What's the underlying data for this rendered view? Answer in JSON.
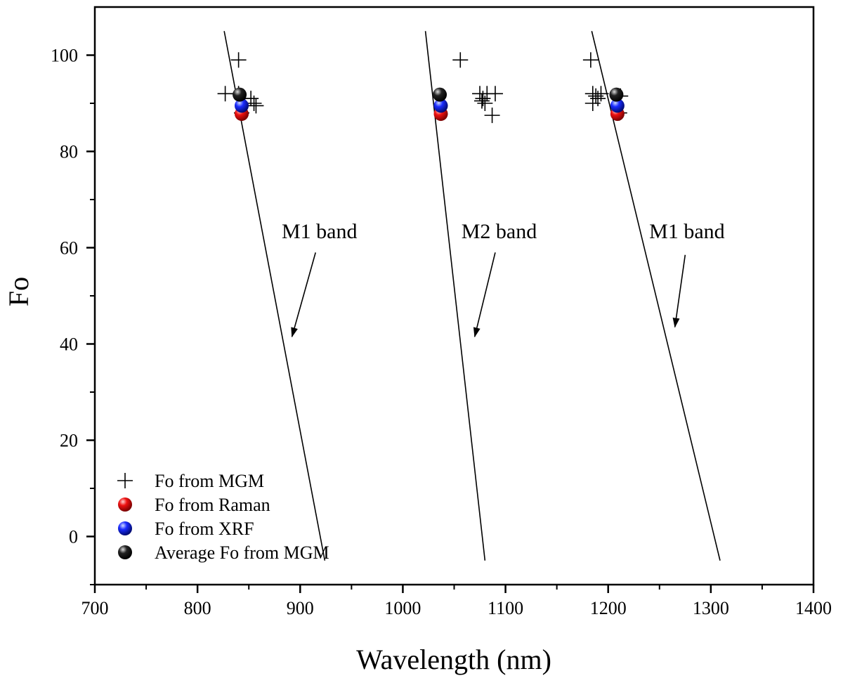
{
  "chart_data": {
    "type": "scatter",
    "title": "",
    "xlabel": "Wavelength (nm)",
    "ylabel": "Fo",
    "xlim": [
      700,
      1400
    ],
    "ylim": [
      -10,
      110
    ],
    "x_ticks": [
      700,
      800,
      900,
      1000,
      1100,
      1200,
      1300,
      1400
    ],
    "x_tick_labels": [
      "700",
      "800",
      "900",
      "1000",
      "1100",
      "1200",
      "1300",
      "1400"
    ],
    "y_ticks": [
      0,
      20,
      40,
      60,
      80,
      100
    ],
    "y_tick_labels": [
      "0",
      "20",
      "40",
      "60",
      "80",
      "100"
    ],
    "grid": false,
    "legend_position": "bottom-left",
    "series": [
      {
        "name": "Fo from MGM",
        "marker": "plus",
        "color": "#000000",
        "points": [
          [
            840,
            99
          ],
          [
            827,
            92
          ],
          [
            840,
            92
          ],
          [
            846,
            91
          ],
          [
            852,
            91
          ],
          [
            855,
            90
          ],
          [
            857,
            89.5
          ],
          [
            843,
            88
          ],
          [
            1056,
            99
          ],
          [
            1075,
            92
          ],
          [
            1078,
            91
          ],
          [
            1080,
            90
          ],
          [
            1082,
            92
          ],
          [
            1090,
            92
          ],
          [
            1077,
            90.5
          ],
          [
            1087,
            87.5
          ],
          [
            1183,
            99
          ],
          [
            1185,
            92
          ],
          [
            1185,
            90
          ],
          [
            1188,
            91.5
          ],
          [
            1190,
            91
          ],
          [
            1193,
            92
          ],
          [
            1212,
            91.5
          ],
          [
            1211,
            88
          ]
        ]
      },
      {
        "name": "Fo from Raman",
        "marker": "sphere",
        "color": "#ee1111",
        "points": [
          [
            843,
            87.8
          ],
          [
            1037,
            87.8
          ],
          [
            1209,
            87.8
          ]
        ]
      },
      {
        "name": "Fo from XRF",
        "marker": "sphere",
        "color": "#1a2cff",
        "points": [
          [
            843,
            89.5
          ],
          [
            1037,
            89.5
          ],
          [
            1209,
            89.5
          ]
        ]
      },
      {
        "name": "Average Fo from MGM",
        "marker": "sphere",
        "color": "#111111",
        "points": [
          [
            841,
            91.8
          ],
          [
            1036,
            91.8
          ],
          [
            1208,
            91.8
          ]
        ]
      }
    ],
    "trend_lines": [
      {
        "name": "M1 band (left)",
        "points": [
          [
            826,
            105
          ],
          [
            924,
            -5
          ]
        ]
      },
      {
        "name": "M2 band",
        "points": [
          [
            1022,
            105
          ],
          [
            1080,
            -5
          ]
        ]
      },
      {
        "name": "M1 band (right)",
        "points": [
          [
            1184,
            105
          ],
          [
            1309,
            -5
          ]
        ]
      }
    ],
    "annotations": [
      {
        "text": "M1 band",
        "text_at": [
          882,
          62
        ],
        "arrow_from": [
          915,
          59
        ],
        "arrow_to": [
          892,
          41.5
        ]
      },
      {
        "text": "M2 band",
        "text_at": [
          1057,
          62
        ],
        "arrow_from": [
          1090,
          59
        ],
        "arrow_to": [
          1070,
          41.5
        ]
      },
      {
        "text": "M1 band",
        "text_at": [
          1240,
          62
        ],
        "arrow_from": [
          1275,
          58.5
        ],
        "arrow_to": [
          1265,
          43.5
        ]
      }
    ]
  }
}
